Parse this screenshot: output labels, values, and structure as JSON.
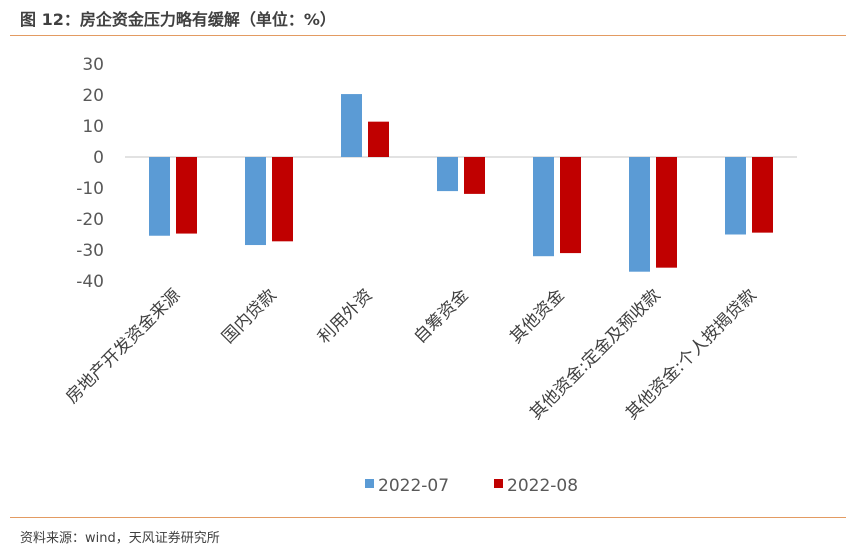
{
  "header": {
    "title": "图 12：房企资金压力略有缓解（单位：%）"
  },
  "footer": {
    "source": "资料来源：wind，天风证券研究所"
  },
  "colors": {
    "series1": "#5b9bd5",
    "series2": "#c00000",
    "rule": "#e39b62",
    "axis": "#d9d9d9"
  },
  "chart_data": {
    "type": "bar",
    "title": "",
    "categories": [
      "房地产开发资金来源",
      "国内贷款",
      "利用外资",
      "自筹资金",
      "其他资金",
      "其他资金:定金及预收款",
      "其他资金:个人按揭贷款"
    ],
    "series": [
      {
        "name": "2022-07",
        "values": [
          -25.4,
          -28.4,
          20.3,
          -11.0,
          -32.0,
          -37.0,
          -25.0
        ]
      },
      {
        "name": "2022-08",
        "values": [
          -24.7,
          -27.2,
          11.4,
          -11.9,
          -31.0,
          -35.7,
          -24.4
        ]
      }
    ],
    "yticks": [
      "30",
      "20",
      "10",
      "0",
      "-10",
      "-20",
      "-30",
      "-40"
    ],
    "ylim": [
      -40,
      30
    ],
    "xlabel": "",
    "ylabel": "",
    "grid": false,
    "legend_position": "bottom"
  }
}
